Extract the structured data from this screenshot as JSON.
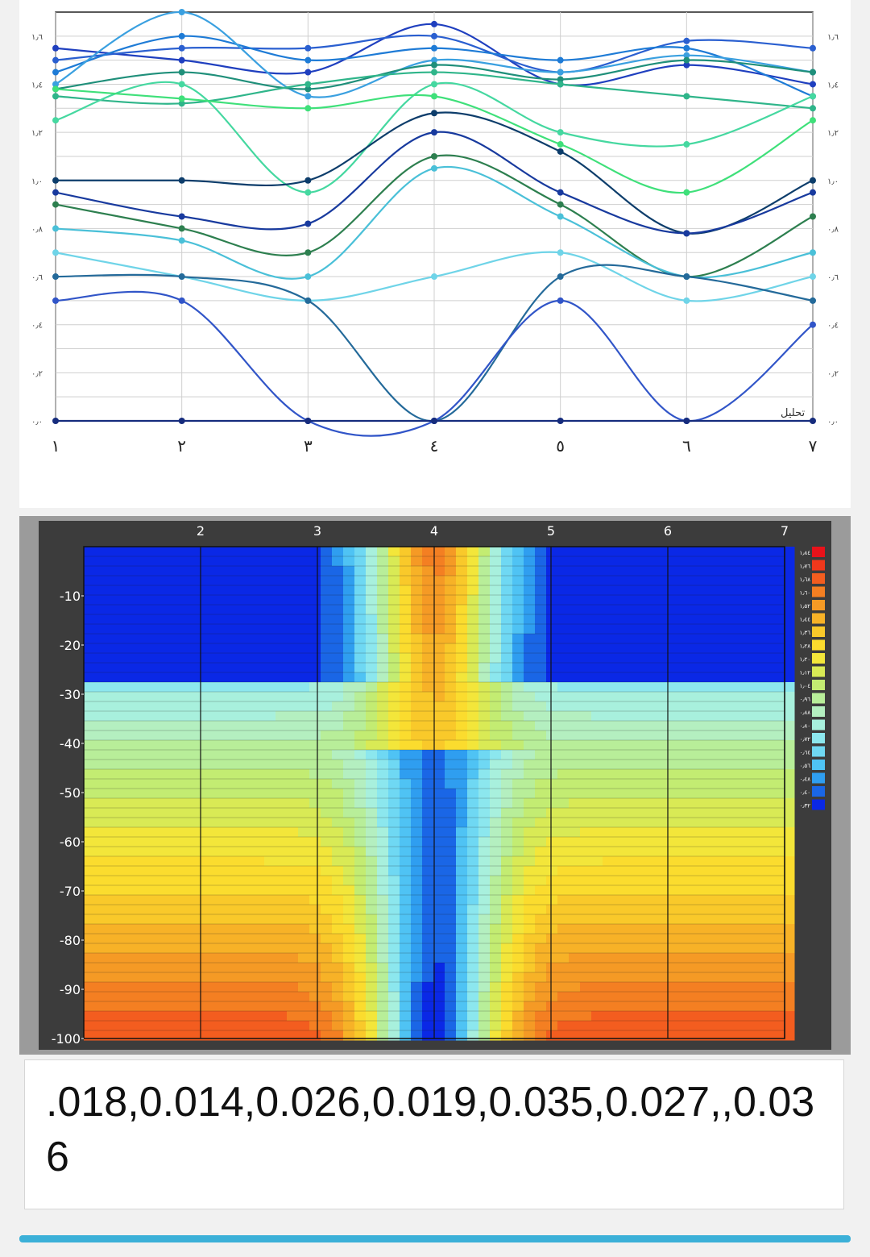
{
  "line_chart": {
    "x_ticks": [
      "١",
      "٢",
      "٣",
      "٤",
      "٥",
      "٦",
      "٧"
    ],
    "y_ticks_left": [
      "١٫٦",
      "١٫٤",
      "١٫٢",
      "١٫٠",
      "٠٫٨",
      "٠٫٦",
      "٠٫٤",
      "٠٫٢",
      "٠٫٠"
    ],
    "y_ticks_right": [
      "١٫٦",
      "١٫٤",
      "١٫٢",
      "١٫٠",
      "٠٫٨",
      "٠٫٦",
      "٠٫٤",
      "٠٫٢",
      "٠٫٠"
    ],
    "corner_label": "تحليل",
    "palette": [
      "#1f3fbf",
      "#2a5fd0",
      "#1e7bd6",
      "#3aa0e0",
      "#1f8f7a",
      "#2fb58a",
      "#45d8a0",
      "#3fe07a",
      "#0d3d6b",
      "#183a9e",
      "#2d7f4f",
      "#4ac0d8",
      "#6fd4e8",
      "#246a9a",
      "#3155c8",
      "#162c7d"
    ]
  },
  "contour_chart": {
    "x_ticks": [
      "2",
      "3",
      "4",
      "5",
      "6",
      "7"
    ],
    "y_ticks": [
      "-10",
      "-20",
      "-30",
      "-40",
      "-50",
      "-60",
      "-70",
      "-80",
      "-90",
      "-100"
    ],
    "legend_labels": [
      "١٫٨٤",
      "١٫٧٦",
      "١٫٦٨",
      "١٫٦٠",
      "١٫٥٢",
      "١٫٤٤",
      "١٫٣٦",
      "١٫٢٨",
      "١٫٢٠",
      "١٫١٢",
      "١٫٠٤",
      "٠٫٩٦",
      "٠٫٨٨",
      "٠٫٨٠",
      "٠٫٧٢",
      "٠٫٦٤",
      "٠٫٥٦",
      "٠٫٤٨",
      "٠٫٤٠",
      "٠٫٣٢",
      "٠٫٢٤",
      "٠٫١٦",
      "٠٫٠٨"
    ],
    "legend_colors": [
      "#e8121a",
      "#f0381c",
      "#f35d1f",
      "#f47f22",
      "#f59a25",
      "#f7b227",
      "#f9c92a",
      "#fbdc2e",
      "#f3e63a",
      "#d9ea55",
      "#c3ec72",
      "#b8ee99",
      "#b4efc0",
      "#a8f0dd",
      "#8ce7ee",
      "#6fd8f3",
      "#4fc3f4",
      "#2f9ef0",
      "#1a66e6",
      "#0a28e6"
    ]
  },
  "chart_data": [
    {
      "type": "line",
      "title": "",
      "xlabel": "",
      "ylabel": "",
      "x": [
        1,
        2,
        3,
        4,
        5,
        6,
        7
      ],
      "ylim": [
        0,
        1.7
      ],
      "series": [
        {
          "values": [
            1.55,
            1.5,
            1.45,
            1.65,
            1.4,
            1.48,
            1.4
          ]
        },
        {
          "values": [
            1.5,
            1.55,
            1.55,
            1.6,
            1.45,
            1.58,
            1.55
          ]
        },
        {
          "values": [
            1.45,
            1.6,
            1.5,
            1.55,
            1.5,
            1.55,
            1.35
          ]
        },
        {
          "values": [
            1.4,
            1.7,
            1.35,
            1.5,
            1.45,
            1.52,
            1.45
          ]
        },
        {
          "values": [
            1.38,
            1.45,
            1.38,
            1.48,
            1.42,
            1.5,
            1.45
          ]
        },
        {
          "values": [
            1.35,
            1.32,
            1.4,
            1.45,
            1.4,
            1.35,
            1.3
          ]
        },
        {
          "values": [
            1.25,
            1.4,
            0.95,
            1.4,
            1.2,
            1.15,
            1.35
          ]
        },
        {
          "values": [
            1.38,
            1.34,
            1.3,
            1.35,
            1.15,
            0.95,
            1.25
          ]
        },
        {
          "values": [
            1.0,
            1.0,
            1.0,
            1.28,
            1.12,
            0.78,
            1.0
          ]
        },
        {
          "values": [
            0.95,
            0.85,
            0.82,
            1.2,
            0.95,
            0.78,
            0.95
          ]
        },
        {
          "values": [
            0.9,
            0.8,
            0.7,
            1.1,
            0.9,
            0.6,
            0.85
          ]
        },
        {
          "values": [
            0.8,
            0.75,
            0.6,
            1.05,
            0.85,
            0.6,
            0.7
          ]
        },
        {
          "values": [
            0.7,
            0.6,
            0.5,
            0.6,
            0.7,
            0.5,
            0.6
          ]
        },
        {
          "values": [
            0.6,
            0.6,
            0.5,
            0.0,
            0.6,
            0.6,
            0.5
          ]
        },
        {
          "values": [
            0.5,
            0.5,
            0.0,
            0.0,
            0.5,
            0.0,
            0.4
          ]
        },
        {
          "values": [
            0.0,
            0.0,
            0.0,
            0.0,
            0.0,
            0.0,
            0.0
          ]
        }
      ]
    },
    {
      "type": "heatmap",
      "title": "",
      "xlabel": "",
      "ylabel": "",
      "x_ticks": [
        2,
        3,
        4,
        5,
        6,
        7
      ],
      "ylim": [
        -100,
        0
      ]
    }
  ],
  "footer": {
    "values_text": ".018,0.014,0.026,0.019,0.035,0.027,,0.036"
  }
}
